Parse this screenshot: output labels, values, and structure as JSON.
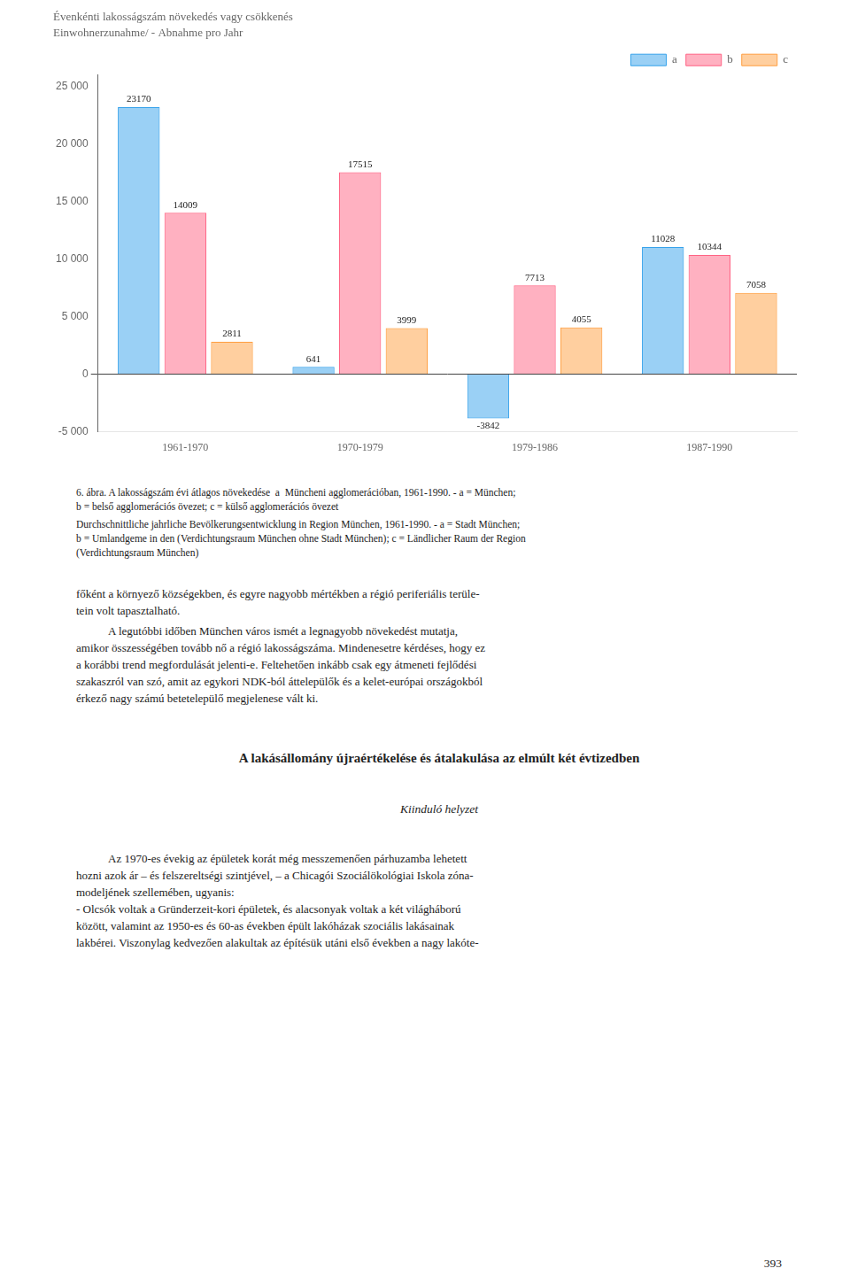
{
  "chart_data": {
    "type": "bar",
    "title": "Évenkénti lakosságszám növekedés vagy csökkenés",
    "subtitle": "Einwohnerzunahme/ - Abnahme pro Jahr",
    "categories": [
      "1961-1970",
      "1970-1979",
      "1979-1986",
      "1987-1990"
    ],
    "series": [
      {
        "name": "a",
        "values": [
          23170,
          641,
          -3842,
          11028
        ]
      },
      {
        "name": "b",
        "values": [
          14009,
          17515,
          7713,
          10344
        ]
      },
      {
        "name": "c",
        "values": [
          2811,
          3999,
          4055,
          7058
        ]
      }
    ],
    "ylim": [
      -5000,
      26000
    ],
    "yticks": [
      {
        "value": -5000,
        "label": "-5 000"
      },
      0,
      {
        "value": 5000,
        "label": "5 000"
      },
      {
        "value": 10000,
        "label": "10 000"
      },
      {
        "value": 15000,
        "label": "15 000"
      },
      {
        "value": 20000,
        "label": "20 000"
      },
      {
        "value": 25000,
        "label": "25 000"
      }
    ],
    "grid": false,
    "legend": "upper right",
    "data_labels": true,
    "annotations": [
      "6. ábra. A lakosságszám évi átlagos növekedése  a  Müncheni agglomerációban, 1961-1990. - a = München;",
      "b = belső agglomerációs övezet; c = külső agglomerációs övezet",
      "Durchschnittliche jahrliche Bevölkerungsentwicklung in Region München, 1961-1990. - a = Stadt München;",
      "b = Umlandgeme in den (Verdichtungsraum München ohne Stadt München); c = Ländlicher Raum der Region",
      "(Verdichtungsraum München)",
      "főként a környező községekben, és egyre nagyobb mértékben a régió periferiális terüle-",
      "tein volt tapasztalható.",
      "A legutóbbi időben München város ismét a legnagyobb növekedést mutatja,",
      "amikor összességében tovább nő a régió lakosságszáma. Mindenesetre kérdéses, hogy ez",
      "a korábbi trend megfordulását jelenti-e. Feltehetően inkább csak egy átmeneti fejlődési",
      "szakaszról van szó, amit az egykori NDK-ból áttelepülők és a kelet-európai országokból",
      "érkező nagy számú betetelepülő megjelenese vált ki.",
      "A lakásállomány újraértékelése és átalakulása az elmúlt két évtizedben",
      "Kiinduló helyzet",
      "Az 1970-es évekig az épületek korát még messzemenően párhuzamba lehetett",
      "hozni azok ár – és felszereltségi szintjével, – a Chicagói Szociálökológiai Iskola zóna-",
      "modeljének szellemében, ugyanis:",
      "- Olcsók voltak a Gründerzeit-kori épületek, és alacsonyak voltak a két világháború",
      "között, valamint az 1950-es és 60-as években épült lakóházak szociális lakásainak",
      "lakbérei. Viszonylag kedvezően alakultak az építésük utáni első években a nagy lakóte-",
      "393"
    ]
  }
}
